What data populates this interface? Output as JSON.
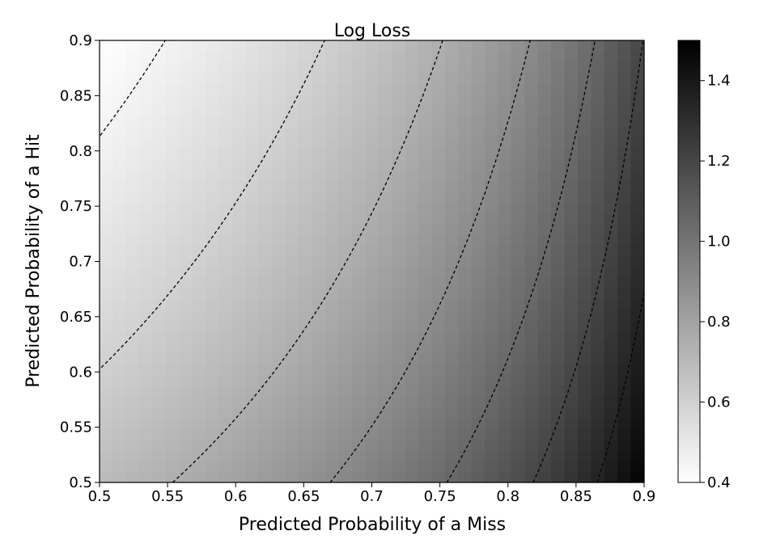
{
  "chart_data": {
    "type": "heatmap",
    "title": "Log Loss",
    "xlabel": "Predicted Probability of a Miss",
    "ylabel": "Predicted Probability of a Hit",
    "xlim": [
      0.5,
      0.9
    ],
    "ylim": [
      0.5,
      0.9
    ],
    "x_ticks": [
      "0.5",
      "0.55",
      "0.6",
      "0.65",
      "0.7",
      "0.75",
      "0.8",
      "0.85",
      "0.9"
    ],
    "y_ticks": [
      "0.5",
      "0.55",
      "0.6",
      "0.65",
      "0.7",
      "0.75",
      "0.8",
      "0.85",
      "0.9"
    ],
    "grid_resolution": 41,
    "function": "log loss = (-ln(hit) - ln(1 - miss)) / 2",
    "colorbar": {
      "colormap": "gray_r",
      "range": [
        0.4,
        1.5
      ],
      "ticks": [
        "0.4",
        "0.6",
        "0.8",
        "1.0",
        "1.2",
        "1.4"
      ]
    },
    "contour_levels": [
      0.45,
      0.6,
      0.75,
      0.9,
      1.05,
      1.2,
      1.35
    ],
    "contour_style": "dashed black",
    "grid": false
  }
}
